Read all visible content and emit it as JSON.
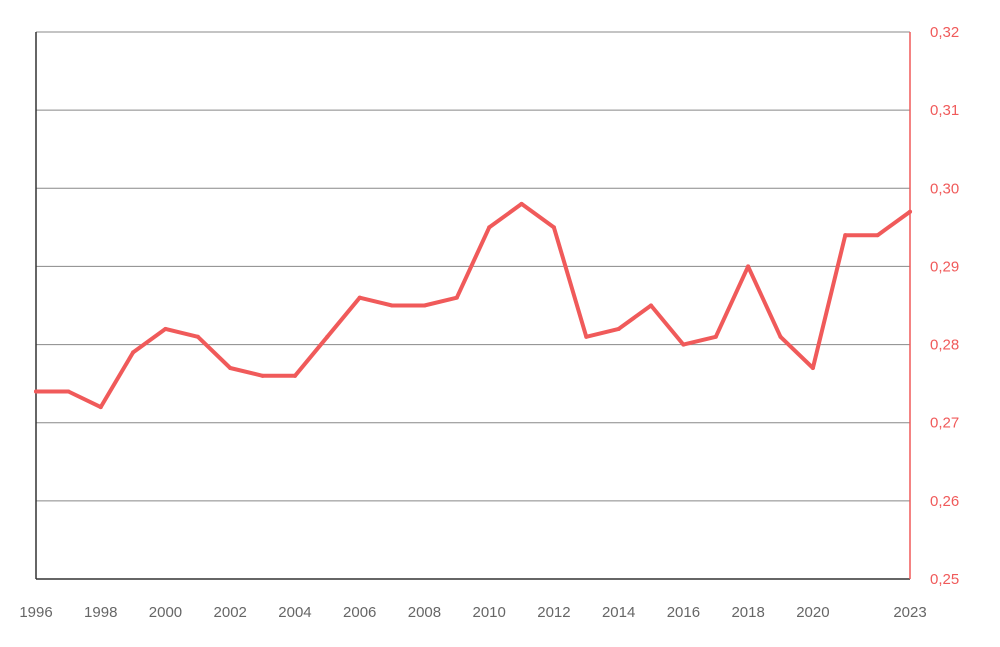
{
  "chart_data": {
    "type": "line",
    "title": "",
    "xlabel": "",
    "ylabel": "",
    "x": [
      1996,
      1997,
      1998,
      1999,
      2000,
      2001,
      2002,
      2003,
      2004,
      2005,
      2006,
      2007,
      2008,
      2009,
      2010,
      2011,
      2012,
      2013,
      2014,
      2015,
      2016,
      2017,
      2018,
      2019,
      2020,
      2021,
      2022,
      2023
    ],
    "series": [
      {
        "values": [
          0.274,
          0.274,
          0.272,
          0.279,
          0.282,
          0.281,
          0.277,
          0.276,
          0.276,
          0.281,
          0.286,
          0.285,
          0.285,
          0.286,
          0.295,
          0.298,
          0.295,
          0.281,
          0.282,
          0.285,
          0.28,
          0.281,
          0.29,
          0.281,
          0.277,
          0.294,
          0.294,
          0.297
        ],
        "color": "#f05a5a"
      }
    ],
    "xlim": [
      1996,
      2023
    ],
    "ylim": [
      0.25,
      0.32
    ],
    "x_tick_labels": [
      "1996",
      "1998",
      "2000",
      "2002",
      "2004",
      "2006",
      "2008",
      "2010",
      "2012",
      "2014",
      "2016",
      "2018",
      "2020",
      "2023"
    ],
    "y_tick_labels": [
      "0,25",
      "0,26",
      "0,27",
      "0,28",
      "0,29",
      "0,30",
      "0,31",
      "0,32"
    ],
    "y_axis_side": "right",
    "grid": "horizontal",
    "legend": "none"
  },
  "colors": {
    "series": "#f05a5a",
    "axis_right": "#f05a5a",
    "grid": "#888888",
    "axis_left": "#333333",
    "x_tick_text": "#666666"
  }
}
